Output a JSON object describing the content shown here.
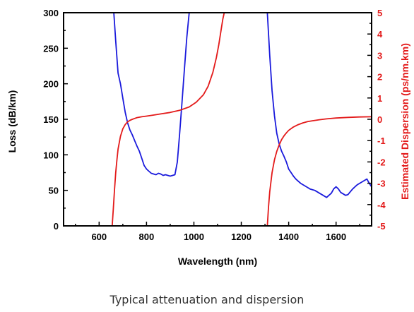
{
  "caption": "Typical attenuation and dispersion",
  "chart_data": {
    "type": "line",
    "xlabel": "Wavelength (nm)",
    "ylabel": "Loss (dB/km)",
    "y2label": "Estimated Dispersion (ps/nm.km)",
    "xlim": [
      450,
      1750
    ],
    "ylim": [
      0,
      300
    ],
    "y2lim": [
      -5,
      5
    ],
    "x_ticks": [
      600,
      800,
      1000,
      1200,
      1400,
      1600
    ],
    "y_ticks": [
      0,
      50,
      100,
      150,
      200,
      250,
      300
    ],
    "y2_ticks": [
      5,
      4,
      3,
      2,
      1,
      0,
      -1,
      -2,
      -3,
      -4,
      -5
    ],
    "colors": {
      "loss": "#1a1adc",
      "dispersion": "#e31a1a",
      "right_axis": "#e31a1a"
    },
    "series": [
      {
        "axis": "left",
        "segments": [
          {
            "x": [
              662,
              670,
              680,
              690,
              700,
              710,
              720,
              730,
              740,
              750,
              760,
              770,
              780,
              790,
              800,
              810,
              820,
              830,
              840,
              850,
              860,
              870,
              880,
              890,
              900,
              910,
              920,
              930,
              940,
              950,
              960,
              970,
              980
            ],
            "y": [
              300,
              260,
              215,
              200,
              180,
              160,
              145,
              135,
              128,
              120,
              112,
              105,
              95,
              85,
              80,
              77,
              74,
              73,
              72,
              74,
              73,
              71,
              72,
              71,
              70,
              71,
              72,
              90,
              130,
              175,
              220,
              265,
              300
            ]
          },
          {
            "x": [
              1310,
              1320,
              1330,
              1340,
              1350,
              1360,
              1370,
              1380,
              1390,
              1400,
              1410,
              1420,
              1430,
              1440,
              1450,
              1460,
              1470,
              1480,
              1490,
              1500,
              1510,
              1520,
              1530,
              1540,
              1550,
              1560,
              1570,
              1580,
              1590,
              1600,
              1610,
              1620,
              1630,
              1640,
              1650,
              1660,
              1670,
              1680,
              1690,
              1700,
              1710,
              1720,
              1730,
              1740,
              1750
            ],
            "y": [
              300,
              240,
              190,
              155,
              130,
              115,
              105,
              98,
              90,
              80,
              75,
              70,
              66,
              63,
              60,
              58,
              56,
              54,
              52,
              51,
              50,
              48,
              46,
              44,
              42,
              40,
              43,
              46,
              52,
              55,
              52,
              47,
              45,
              43,
              44,
              48,
              52,
              55,
              58,
              60,
              62,
              64,
              66,
              60,
              55
            ]
          }
        ]
      },
      {
        "axis": "right",
        "segments": [
          {
            "x": [
              655,
              660,
              665,
              670,
              675,
              680,
              690,
              700,
              710,
              720,
              730,
              740,
              750,
              760,
              780,
              800,
              830,
              860,
              900,
              940,
              980,
              1010,
              1040,
              1060,
              1080,
              1095,
              1105,
              1115,
              1122,
              1128
            ],
            "y": [
              -5,
              -4.2,
              -3.3,
              -2.5,
              -1.9,
              -1.4,
              -0.8,
              -0.45,
              -0.25,
              -0.12,
              -0.05,
              0,
              0.04,
              0.08,
              0.12,
              0.15,
              0.2,
              0.25,
              0.32,
              0.42,
              0.58,
              0.8,
              1.15,
              1.55,
              2.2,
              2.9,
              3.5,
              4.2,
              4.7,
              5
            ]
          },
          {
            "x": [
              1310,
              1315,
              1320,
              1330,
              1340,
              1350,
              1360,
              1370,
              1380,
              1390,
              1400,
              1420,
              1440,
              1460,
              1480,
              1500,
              1530,
              1560,
              1600,
              1650,
              1700,
              1750
            ],
            "y": [
              -5,
              -4.1,
              -3.4,
              -2.5,
              -1.9,
              -1.5,
              -1.2,
              -0.95,
              -0.78,
              -0.64,
              -0.52,
              -0.36,
              -0.25,
              -0.17,
              -0.11,
              -0.07,
              -0.02,
              0.02,
              0.06,
              0.09,
              0.11,
              0.12
            ]
          }
        ]
      }
    ]
  }
}
